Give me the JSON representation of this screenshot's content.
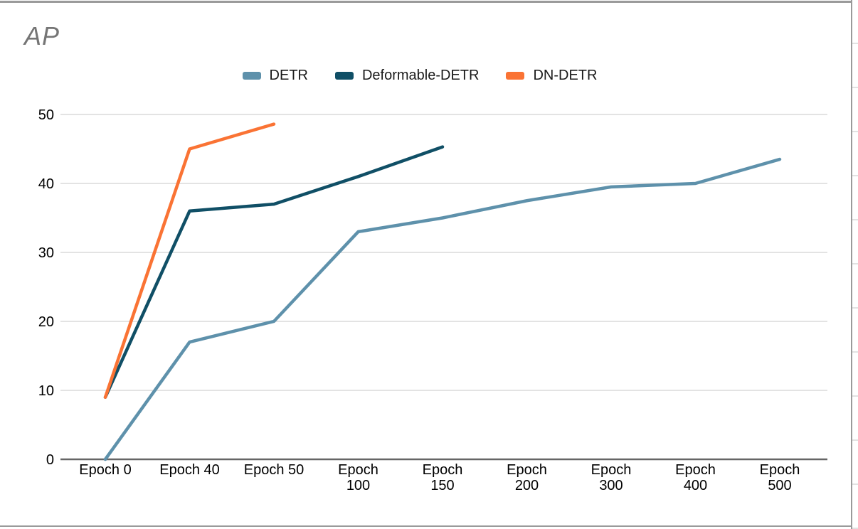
{
  "chart_data": {
    "type": "line",
    "title": "AP",
    "xlabel": "",
    "ylabel": "AP",
    "categories": [
      "Epoch 0",
      "Epoch 40",
      "Epoch 50",
      "Epoch 100",
      "Epoch 150",
      "Epoch 200",
      "Epoch 300",
      "Epoch 400",
      "Epoch 500"
    ],
    "series": [
      {
        "name": "DETR",
        "color": "#5E91AB",
        "values": [
          0,
          17,
          20,
          33,
          35,
          37.5,
          39.5,
          40,
          43.5
        ]
      },
      {
        "name": "Deformable-DETR",
        "color": "#104F66",
        "values": [
          9,
          36,
          37,
          41,
          45.3
        ]
      },
      {
        "name": "DN-DETR",
        "color": "#FA7334",
        "values": [
          9,
          45,
          48.6
        ]
      }
    ],
    "y_ticks": [
      0,
      10,
      20,
      30,
      40,
      50
    ],
    "ylim": [
      0,
      50
    ],
    "grid": true,
    "legend_position": "top",
    "colors": {
      "gridline": "#dadada",
      "axis_line": "#666666",
      "tick_label": "#000000",
      "title": "#757575",
      "frame": "#9a9a9a"
    }
  }
}
